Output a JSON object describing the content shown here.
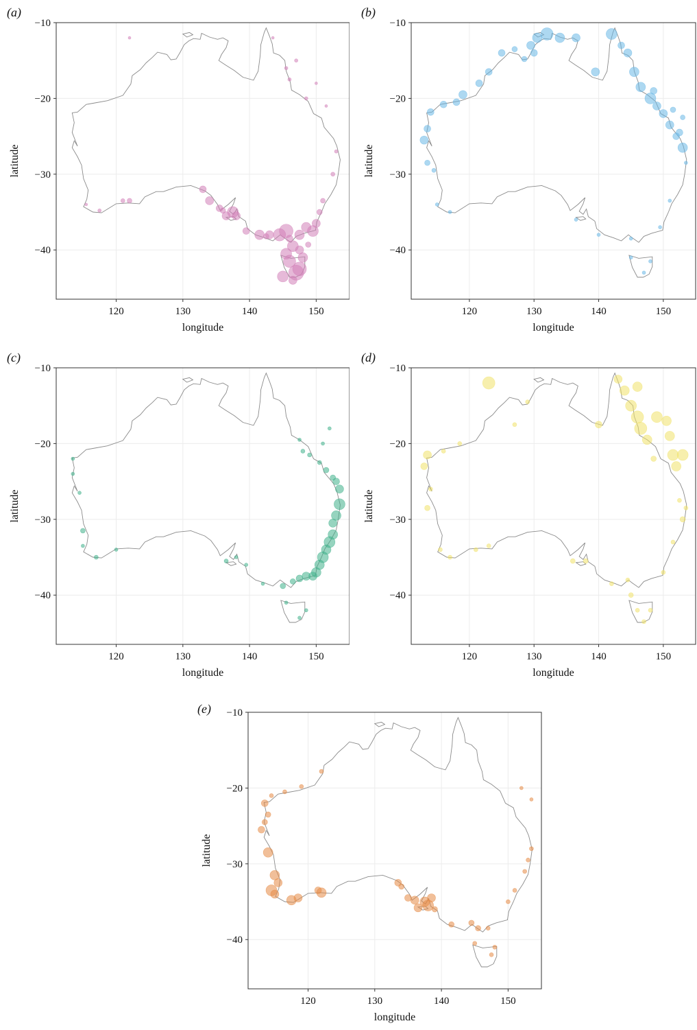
{
  "figure": {
    "x_axis_label": "longitude",
    "y_axis_label": "latitude",
    "x_ticks": [
      120,
      130,
      140,
      150
    ],
    "y_ticks": [
      -10,
      -20,
      -30,
      -40
    ],
    "x_tick_labels": [
      "120",
      "130",
      "140",
      "150"
    ],
    "y_tick_labels": [
      "−10",
      "−20",
      "−30",
      "−40"
    ],
    "xlim": [
      111,
      155
    ],
    "ylim": [
      -46.5,
      -10
    ]
  },
  "panels": [
    {
      "label": "(a)",
      "color": "#d27fb8",
      "points": [
        [
          147.5,
          -42.5,
          18
        ],
        [
          146.0,
          -41.5,
          16
        ],
        [
          147.0,
          -43.0,
          20
        ],
        [
          145.5,
          -40.5,
          14
        ],
        [
          148.0,
          -41.0,
          12
        ],
        [
          146.5,
          -39.5,
          14
        ],
        [
          144.5,
          -38.0,
          16
        ],
        [
          145.5,
          -37.5,
          18
        ],
        [
          147.5,
          -38.0,
          12
        ],
        [
          149.5,
          -37.5,
          14
        ],
        [
          150.0,
          -36.5,
          10
        ],
        [
          148.5,
          -37.0,
          12
        ],
        [
          143.0,
          -38.0,
          10
        ],
        [
          141.5,
          -38.0,
          12
        ],
        [
          139.5,
          -37.5,
          8
        ],
        [
          138.0,
          -35.5,
          10
        ],
        [
          137.5,
          -35.0,
          14
        ],
        [
          136.5,
          -35.5,
          10
        ],
        [
          135.5,
          -34.5,
          8
        ],
        [
          134.0,
          -33.5,
          10
        ],
        [
          133.0,
          -32.0,
          8
        ],
        [
          145.0,
          -43.5,
          14
        ],
        [
          146.5,
          -44.0,
          10
        ],
        [
          147.5,
          -40.0,
          10
        ],
        [
          146.0,
          -38.5,
          8
        ],
        [
          150.5,
          -35.0,
          6
        ],
        [
          151.0,
          -33.5,
          5
        ],
        [
          152.5,
          -30.0,
          4
        ],
        [
          153.0,
          -27.0,
          3
        ],
        [
          148.5,
          -20.0,
          3
        ],
        [
          146.0,
          -17.5,
          3
        ],
        [
          145.5,
          -16.0,
          3
        ],
        [
          147.0,
          -15.0,
          3
        ],
        [
          150.0,
          -18.0,
          2
        ],
        [
          151.5,
          -21.0,
          2
        ],
        [
          143.5,
          -12.0,
          2
        ],
        [
          122.0,
          -33.5,
          5
        ],
        [
          121.0,
          -33.5,
          4
        ],
        [
          117.5,
          -34.8,
          3
        ],
        [
          115.5,
          -34.0,
          2
        ],
        [
          122.0,
          -12.0,
          2
        ],
        [
          136.0,
          -34.8,
          6
        ],
        [
          142.5,
          -38.2,
          6
        ],
        [
          148.8,
          -39.3,
          6
        ]
      ]
    },
    {
      "label": "(b)",
      "color": "#6ab8e6",
      "points": [
        [
          130.5,
          -12.0,
          12
        ],
        [
          132.0,
          -11.5,
          16
        ],
        [
          134.0,
          -12.0,
          12
        ],
        [
          129.5,
          -13.0,
          10
        ],
        [
          130.0,
          -14.0,
          8
        ],
        [
          136.5,
          -12.0,
          10
        ],
        [
          142.0,
          -11.5,
          14
        ],
        [
          139.5,
          -16.5,
          10
        ],
        [
          144.5,
          -14.0,
          10
        ],
        [
          145.5,
          -16.5,
          12
        ],
        [
          146.5,
          -18.5,
          12
        ],
        [
          148.0,
          -20.0,
          14
        ],
        [
          149.0,
          -21.0,
          10
        ],
        [
          150.0,
          -22.0,
          10
        ],
        [
          151.0,
          -23.5,
          10
        ],
        [
          152.5,
          -24.5,
          8
        ],
        [
          153.0,
          -26.5,
          12
        ],
        [
          152.0,
          -25.0,
          8
        ],
        [
          148.5,
          -19.0,
          8
        ],
        [
          143.5,
          -13.0,
          8
        ],
        [
          125.0,
          -14.0,
          8
        ],
        [
          123.0,
          -16.5,
          8
        ],
        [
          121.5,
          -18.0,
          8
        ],
        [
          119.0,
          -19.5,
          10
        ],
        [
          118.0,
          -20.5,
          8
        ],
        [
          116.0,
          -20.8,
          8
        ],
        [
          114.0,
          -21.8,
          8
        ],
        [
          113.5,
          -24.0,
          8
        ],
        [
          113.0,
          -25.5,
          10
        ],
        [
          113.5,
          -28.5,
          6
        ],
        [
          114.5,
          -29.5,
          4
        ],
        [
          115.0,
          -34.0,
          3
        ],
        [
          117.0,
          -35.0,
          3
        ],
        [
          136.5,
          -36.0,
          3
        ],
        [
          140.0,
          -38.0,
          3
        ],
        [
          145.0,
          -38.5,
          3
        ],
        [
          149.5,
          -37.0,
          3
        ],
        [
          151.0,
          -33.5,
          3
        ],
        [
          153.5,
          -28.5,
          3
        ],
        [
          147.0,
          -43.0,
          3
        ],
        [
          145.0,
          -41.0,
          3
        ],
        [
          148.0,
          -41.5,
          3
        ],
        [
          151.5,
          -21.5,
          6
        ],
        [
          153.0,
          -22.5,
          5
        ],
        [
          128.5,
          -14.8,
          6
        ],
        [
          127.0,
          -13.5,
          6
        ]
      ]
    },
    {
      "label": "(c)",
      "color": "#3fb08a",
      "points": [
        [
          153.5,
          -26.0,
          10
        ],
        [
          153.5,
          -28.0,
          14
        ],
        [
          153.0,
          -29.5,
          12
        ],
        [
          152.5,
          -30.5,
          10
        ],
        [
          152.5,
          -32.0,
          12
        ],
        [
          152.0,
          -33.0,
          14
        ],
        [
          151.5,
          -34.0,
          12
        ],
        [
          151.0,
          -35.0,
          14
        ],
        [
          150.5,
          -36.0,
          12
        ],
        [
          150.0,
          -37.0,
          12
        ],
        [
          149.5,
          -37.5,
          10
        ],
        [
          148.5,
          -37.5,
          10
        ],
        [
          147.5,
          -37.8,
          8
        ],
        [
          146.5,
          -38.2,
          6
        ],
        [
          145.0,
          -38.8,
          6
        ],
        [
          153.0,
          -25.0,
          8
        ],
        [
          152.5,
          -24.5,
          6
        ],
        [
          151.5,
          -23.5,
          6
        ],
        [
          150.5,
          -22.5,
          4
        ],
        [
          149.0,
          -21.5,
          4
        ],
        [
          148.0,
          -21.0,
          4
        ],
        [
          147.5,
          -19.5,
          3
        ],
        [
          151.0,
          -20.0,
          3
        ],
        [
          152.0,
          -18.0,
          3
        ],
        [
          113.5,
          -22.0,
          3
        ],
        [
          113.5,
          -24.0,
          3
        ],
        [
          114.5,
          -26.5,
          3
        ],
        [
          115.0,
          -31.5,
          5
        ],
        [
          115.0,
          -33.5,
          3
        ],
        [
          117.0,
          -35.0,
          4
        ],
        [
          120.0,
          -34.0,
          3
        ],
        [
          136.5,
          -35.5,
          4
        ],
        [
          138.0,
          -35.0,
          3
        ],
        [
          145.5,
          -41.0,
          3
        ],
        [
          147.5,
          -43.0,
          3
        ],
        [
          148.5,
          -42.0,
          3
        ],
        [
          142.0,
          -38.5,
          3
        ],
        [
          139.5,
          -36.0,
          3
        ]
      ]
    },
    {
      "label": "(d)",
      "color": "#f0e26a",
      "points": [
        [
          144.0,
          -13.0,
          12
        ],
        [
          145.0,
          -15.0,
          14
        ],
        [
          146.0,
          -16.5,
          16
        ],
        [
          146.5,
          -18.0,
          16
        ],
        [
          147.5,
          -19.5,
          12
        ],
        [
          149.0,
          -16.5,
          14
        ],
        [
          150.5,
          -17.0,
          12
        ],
        [
          151.0,
          -19.0,
          12
        ],
        [
          151.5,
          -21.5,
          14
        ],
        [
          153.0,
          -21.5,
          14
        ],
        [
          152.0,
          -23.0,
          12
        ],
        [
          146.0,
          -12.5,
          12
        ],
        [
          143.0,
          -11.5,
          10
        ],
        [
          123.0,
          -12.0,
          16
        ],
        [
          140.0,
          -17.5,
          8
        ],
        [
          113.5,
          -21.5,
          10
        ],
        [
          113.0,
          -23.0,
          8
        ],
        [
          113.5,
          -28.5,
          6
        ],
        [
          114.0,
          -26.0,
          4
        ],
        [
          115.5,
          -34.0,
          4
        ],
        [
          117.0,
          -35.0,
          4
        ],
        [
          121.0,
          -34.0,
          4
        ],
        [
          123.0,
          -33.5,
          4
        ],
        [
          136.0,
          -35.5,
          5
        ],
        [
          138.0,
          -35.5,
          5
        ],
        [
          142.0,
          -38.5,
          4
        ],
        [
          144.5,
          -38.0,
          4
        ],
        [
          145.0,
          -40.0,
          5
        ],
        [
          146.0,
          -42.0,
          4
        ],
        [
          147.0,
          -43.5,
          4
        ],
        [
          148.0,
          -42.0,
          4
        ],
        [
          150.0,
          -37.0,
          4
        ],
        [
          151.5,
          -33.0,
          4
        ],
        [
          153.0,
          -30.0,
          6
        ],
        [
          153.5,
          -28.5,
          4
        ],
        [
          152.5,
          -27.5,
          4
        ],
        [
          148.5,
          -22.0,
          6
        ],
        [
          129.0,
          -14.5,
          4
        ],
        [
          127.0,
          -17.5,
          4
        ],
        [
          118.5,
          -20.0,
          4
        ],
        [
          116.0,
          -21.0,
          4
        ]
      ]
    },
    {
      "label": "(e)",
      "color": "#e58a45",
      "points": [
        [
          113.5,
          -22.0,
          8
        ],
        [
          114.0,
          -23.5,
          6
        ],
        [
          113.0,
          -25.5,
          8
        ],
        [
          113.5,
          -24.5,
          6
        ],
        [
          114.0,
          -28.5,
          12
        ],
        [
          115.0,
          -31.5,
          12
        ],
        [
          115.5,
          -32.5,
          10
        ],
        [
          114.5,
          -33.5,
          14
        ],
        [
          115.0,
          -34.0,
          10
        ],
        [
          117.5,
          -34.8,
          12
        ],
        [
          118.5,
          -34.5,
          10
        ],
        [
          122.0,
          -33.8,
          12
        ],
        [
          121.5,
          -33.5,
          8
        ],
        [
          133.5,
          -32.5,
          8
        ],
        [
          134.0,
          -33.0,
          6
        ],
        [
          135.0,
          -34.5,
          8
        ],
        [
          136.0,
          -34.8,
          10
        ],
        [
          137.5,
          -35.0,
          12
        ],
        [
          138.0,
          -35.5,
          14
        ],
        [
          138.5,
          -34.5,
          10
        ],
        [
          136.5,
          -35.8,
          10
        ],
        [
          139.0,
          -36.0,
          6
        ],
        [
          141.5,
          -38.0,
          6
        ],
        [
          144.5,
          -37.8,
          6
        ],
        [
          145.5,
          -38.5,
          6
        ],
        [
          147.0,
          -38.5,
          4
        ],
        [
          148.0,
          -41.0,
          4
        ],
        [
          145.0,
          -40.5,
          4
        ],
        [
          147.5,
          -42.0,
          4
        ],
        [
          150.0,
          -35.0,
          4
        ],
        [
          151.0,
          -33.5,
          4
        ],
        [
          152.5,
          -31.0,
          4
        ],
        [
          153.0,
          -29.5,
          4
        ],
        [
          153.5,
          -28.0,
          4
        ],
        [
          119.0,
          -19.8,
          4
        ],
        [
          122.0,
          -17.8,
          4
        ],
        [
          116.5,
          -20.5,
          4
        ],
        [
          114.5,
          -21.0,
          4
        ],
        [
          153.5,
          -21.5,
          3
        ],
        [
          152.0,
          -20.0,
          3
        ]
      ]
    }
  ]
}
